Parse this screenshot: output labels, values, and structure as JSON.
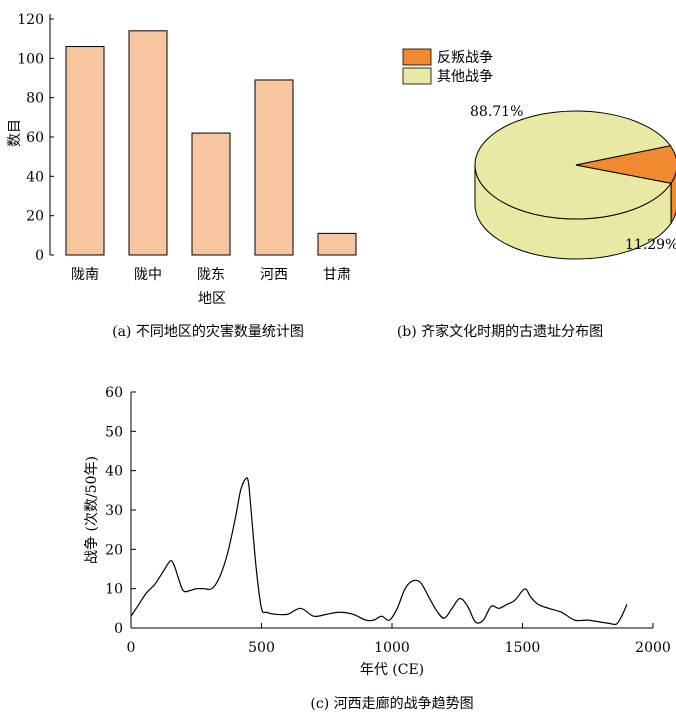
{
  "chart_data": [
    {
      "type": "bar",
      "categories": [
        "陇南",
        "陇中",
        "陇东",
        "河西",
        "甘肃"
      ],
      "values": [
        106,
        114,
        62,
        89,
        11
      ],
      "xlabel": "地区",
      "ylabel": "数目",
      "ylim": [
        0,
        120
      ],
      "yticks": [
        0,
        20,
        40,
        60,
        80,
        100,
        120
      ],
      "caption": "(a) 不同地区的灾害数量统计图",
      "colors": {
        "bar": "#f7c59f"
      }
    },
    {
      "type": "pie",
      "labels": [
        "反叛战争",
        "其他战争"
      ],
      "values": [
        11.29,
        88.71
      ],
      "value_labels": [
        "11.29%",
        "88.71%"
      ],
      "legend_position": "top",
      "caption": "(b) 齐家文化时期的古遗址分布图",
      "colors": {
        "反叛战争": "#f0892f",
        "其他战争": "#e8eaa4"
      }
    },
    {
      "type": "line",
      "xlabel": "年代 (CE)",
      "ylabel": "战争 (次数/50年)",
      "xlim": [
        0,
        2000
      ],
      "ylim": [
        0,
        60
      ],
      "xticks": [
        0,
        500,
        1000,
        1500,
        2000
      ],
      "yticks": [
        0,
        10,
        20,
        30,
        40,
        50,
        60
      ],
      "caption": "(c) 河西走廊的战争趋势图",
      "series": [
        {
          "x": [
            0,
            30,
            60,
            90,
            120,
            150,
            165,
            180,
            200,
            225,
            250,
            280,
            310,
            340,
            370,
            400,
            420,
            440,
            450,
            460,
            480,
            500,
            520,
            550,
            600,
            650,
            700,
            750,
            800,
            850,
            900,
            930,
            960,
            990,
            1020,
            1050,
            1080,
            1110,
            1140,
            1170,
            1200,
            1230,
            1260,
            1290,
            1320,
            1350,
            1380,
            1410,
            1440,
            1470,
            1500,
            1515,
            1530,
            1560,
            1600,
            1650,
            1700,
            1750,
            1800,
            1830,
            1860,
            1880,
            1900
          ],
          "y": [
            3,
            6,
            9,
            11,
            14,
            17,
            16,
            13,
            9.5,
            9.5,
            10,
            10,
            10,
            13,
            19,
            28,
            35,
            38,
            37,
            30,
            15,
            5,
            4,
            3.5,
            3.5,
            5,
            3,
            3.5,
            4,
            3.5,
            2,
            2,
            3,
            2,
            5,
            10,
            12,
            11.5,
            8,
            4.5,
            2.5,
            5,
            7.5,
            5.5,
            1.5,
            2,
            5.5,
            5,
            6,
            7,
            9.5,
            9.8,
            8,
            6,
            5,
            4,
            2,
            2,
            1.5,
            1.2,
            1,
            3,
            6
          ]
        }
      ]
    }
  ]
}
